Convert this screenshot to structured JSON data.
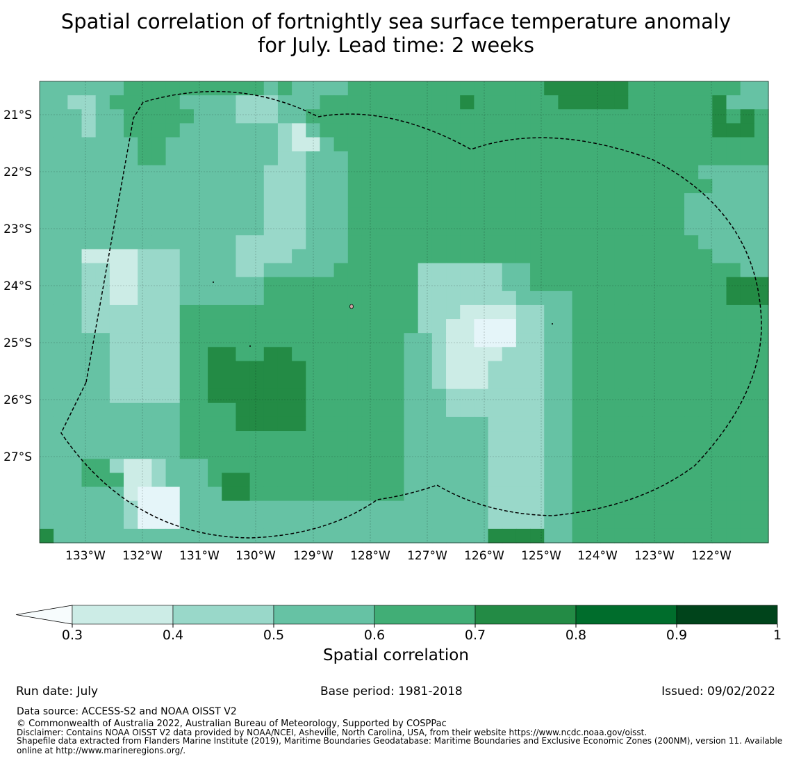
{
  "title": {
    "line1": "Spatial correlation of fortnightly sea surface temperature anomaly",
    "line2": "for July. Lead time: 2 weeks"
  },
  "map": {
    "lat_labels": [
      "21°S",
      "22°S",
      "23°S",
      "24°S",
      "25°S",
      "26°S",
      "27°S"
    ],
    "lon_labels": [
      "133°W",
      "132°W",
      "131°W",
      "130°W",
      "129°W",
      "128°W",
      "127°W",
      "126°W",
      "125°W",
      "124°W",
      "123°W",
      "122°W"
    ],
    "lon_range": [
      "133.8°W",
      "121.0°W"
    ],
    "lat_range": [
      "20.6°S",
      "28.7°S"
    ],
    "gridlines": true,
    "eez_boundary": "dashed black line"
  },
  "chart_data": {
    "type": "heatmap",
    "variable": "Spatial correlation",
    "cols": 52,
    "rows": 33,
    "cell_size_deg": 0.25,
    "value_legend": "0=<0.3,1=0.3-0.4,2=0.4-0.5,3=0.5-0.6,4=0.6-0.7,5=0.7-0.8",
    "grid": [
      "3333334444444444343333444444444444445555554444444433",
      "3322344444333322233344444444445444444555554444445333",
      "3332334444433322233444444444444444444444444444445454",
      "3332334444333333321344444444444444444444444444445554",
      "3333333443333333321134444444444444444444444444444444",
      "3333333443333333322333444444444444444444444444444444",
      "3333333333333333222333444444444444444444444444433333",
      "3333333333333333222333444444444444444444444444443333",
      "3333333333333333222333444444444444444444444444333333",
      "3333333333333333222333444444444444444444444444333333",
      "3333333333333333222333444444444444444444444444333333",
      "3333333333333322222333444444444444444444444444433333",
      "3331111222333322223333444444444444444444444444443333",
      "3332211222333322333334444442222223344444444444444433",
      "3332211222333333444444444442222223344444444444444555",
      "3332211222333333444444444442222222333344444444444555",
      "3332222222444444444444444442221111223344444444444444",
      "3332222222444444444444444442211000223344444444444444",
      "3333322222444444444444444433211000223344444444444444",
      "3333322222445544554444444433211112223344444444444444",
      "3333322222445555555444444433211122223344444444444444",
      "3333322222445555555444444433211122223344444444444444",
      "3333322222445555555444444433322222223344444444444444",
      "3333333333444455555444444433322222223344444444444444",
      "3333333333444455555444444433333322223344444444444444",
      "3333333333444444444444444433333322223344444444444444",
      "3333333333444444444444444433333322223344444444444444",
      "3334421123334444444444444433333322223344444444444444",
      "3334441123334554444444444433333322223344444444444444",
      "3333331000333554444444444433333322223344444444444444",
      "3333332000333333333333333333333322223344444444444444",
      "3333332000333333333333333333333322223344444444444444",
      "5333333333333333333333333333333355553344444444444444"
    ]
  },
  "colorbar": {
    "ticks": [
      "0.3",
      "0.4",
      "0.5",
      "0.6",
      "0.7",
      "0.8",
      "0.9",
      "1"
    ],
    "colors": [
      "#ccece6",
      "#99d8c9",
      "#66c2a4",
      "#41ae76",
      "#238b45",
      "#006d2c",
      "#00441b"
    ],
    "extend_color": "#f7fcfd",
    "label": "Spatial correlation"
  },
  "cell_colors": [
    "#e5f5f9",
    "#ccece6",
    "#99d8c9",
    "#66c2a4",
    "#41ae76",
    "#238b45"
  ],
  "meta": {
    "run_date": "Run date: July",
    "base_period": "Base period: 1981-2018",
    "issued": "Issued: 09/02/2022"
  },
  "footer": {
    "data_source": "Data source: ACCESS-S2 and NOAA OISST V2",
    "copyright": "© Commonwealth of Australia 2022, Australian Bureau of Meteorology, Supported by COSPPac",
    "disclaimer": "Disclaimer: Contains NOAA OISST V2 data provided by NOAA/NCEI, Asheville, North Carolina, USA, from their website https://www.ncdc.noaa.gov/oisst.",
    "shapefile_line1": "Shapefile data extracted from Flanders Marine Institute (2019), Maritime Boundaries Geodatabase: Maritime Boundaries and Exclusive Economic Zones (200NM), version 11. Available",
    "shapefile_line2": "online at http://www.marineregions.org/."
  }
}
